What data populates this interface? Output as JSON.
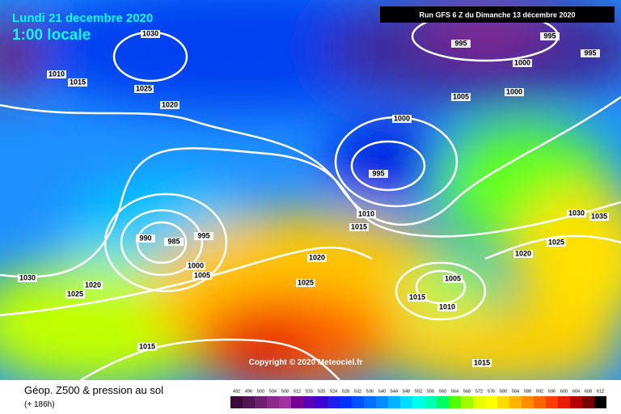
{
  "header": {
    "date": "Lundi 21 decembre 2020",
    "time": "1:00 locale",
    "run": "Run GFS 6 Z du Dimanche 13 décembre 2020",
    "copyright": "Copyright © 2020 Meteociel.fr"
  },
  "footer": {
    "title": "Géop. Z500 & pression au sol",
    "lead": "(+ 186h)"
  },
  "isobar_labels": [
    1030,
    1010,
    1015,
    1025,
    1020,
    995,
    995,
    995,
    1000,
    1000,
    1005,
    1000,
    995,
    1010,
    1015,
    1030,
    1035,
    1025,
    1020,
    990,
    985,
    995,
    1000,
    1005,
    1020,
    1025,
    1030,
    1020,
    1025,
    1005,
    1015,
    1010,
    1015,
    1015
  ],
  "legend": {
    "values": [
      492,
      496,
      500,
      504,
      508,
      512,
      516,
      520,
      524,
      528,
      532,
      536,
      540,
      544,
      548,
      552,
      556,
      560,
      564,
      568,
      572,
      576,
      580,
      584,
      588,
      592,
      596,
      600,
      604,
      608,
      612
    ],
    "colors": [
      "#3c0a3c",
      "#501450",
      "#6e1e6e",
      "#8c288c",
      "#a032a0",
      "#780096",
      "#5a00b4",
      "#3c00d2",
      "#1e1ee6",
      "#0032ff",
      "#0050ff",
      "#006eff",
      "#008cff",
      "#00b4ff",
      "#00dcff",
      "#00ffe6",
      "#00ffb4",
      "#00ff64",
      "#50ff00",
      "#a0ff00",
      "#e6ff00",
      "#ffff00",
      "#ffdc00",
      "#ffb400",
      "#ff8c00",
      "#ff6400",
      "#ff3c00",
      "#e61e00",
      "#b40000",
      "#780000",
      "#000000"
    ]
  }
}
